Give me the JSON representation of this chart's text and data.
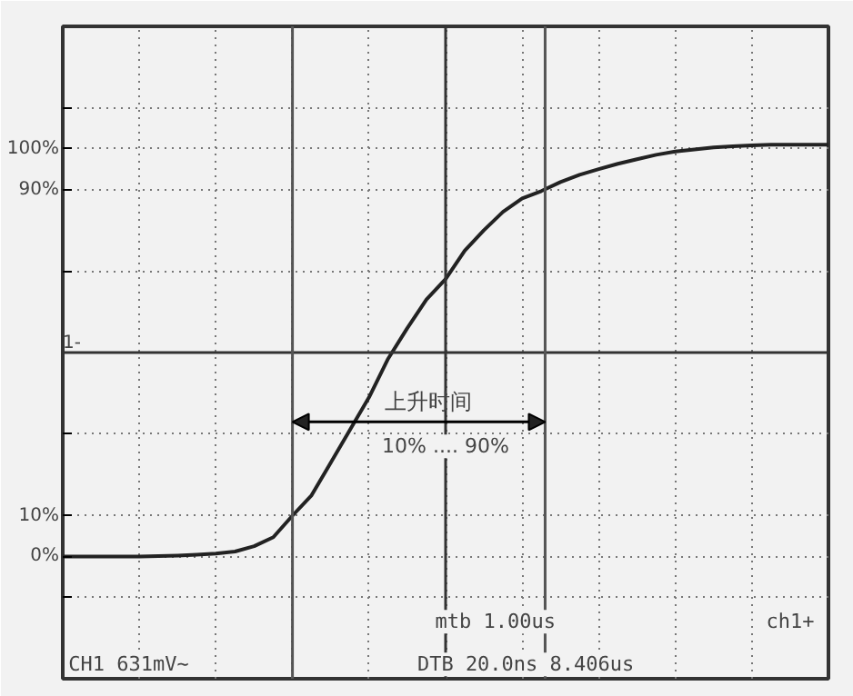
{
  "chart_data": {
    "type": "line",
    "categories": [
      null,
      null,
      null,
      null,
      null,
      null,
      null,
      null,
      null,
      null,
      null,
      null,
      null,
      null,
      null,
      null,
      null,
      null,
      null,
      null,
      null,
      null,
      null,
      null,
      null,
      null,
      null,
      null,
      null,
      null,
      null,
      null,
      null,
      null,
      null,
      null,
      null,
      null,
      null,
      null,
      null
    ],
    "series": [
      {
        "color": "#222222",
        "values": [
          0,
          0,
          0,
          0,
          0,
          0.1,
          0.2,
          0.4,
          0.7,
          1.2,
          2.5,
          4.7,
          10,
          15,
          23,
          31,
          39,
          48.5,
          56,
          63,
          68,
          75,
          80,
          84.5,
          87.8,
          89.6,
          91.8,
          93.6,
          95,
          96.3,
          97.4,
          98.5,
          99.3,
          99.8,
          100.3,
          100.6,
          100.8,
          101,
          101,
          101,
          101
        ]
      }
    ],
    "ylim": [
      -30,
      130
    ],
    "yticks": [
      {
        "value": -10,
        "label": null
      },
      {
        "value": 0,
        "label": "0%"
      },
      {
        "value": 10,
        "label": "10%"
      },
      {
        "value": 30,
        "label": null
      },
      {
        "value": 70,
        "label": null
      },
      {
        "value": 90,
        "label": "90%"
      },
      {
        "value": 100,
        "label": "100%"
      },
      {
        "value": 110,
        "label": null
      }
    ],
    "tick_labels": "y",
    "grid": true,
    "ref_lines": [
      {
        "axis": "y",
        "value": 50,
        "color": "#333333"
      }
    ],
    "annotations": [
      "上升时间",
      "10% .... 90%",
      "1-",
      "mtb 1.00us",
      "CH1  631mV~",
      "DTB 20.0ns  8.406us",
      "ch1+"
    ]
  }
}
